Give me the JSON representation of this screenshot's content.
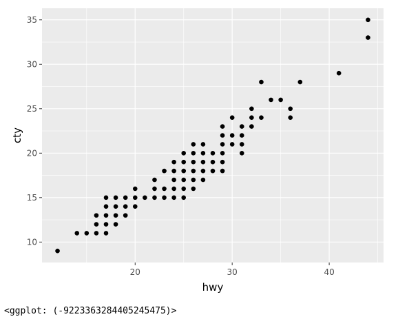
{
  "chart_data": {
    "type": "scatter",
    "xlabel": "hwy",
    "ylabel": "cty",
    "xlim": [
      10.4,
      45.6
    ],
    "ylim": [
      7.7,
      36.3
    ],
    "x_ticks": [
      20,
      30,
      40
    ],
    "y_ticks": [
      10,
      15,
      20,
      25,
      30,
      35
    ],
    "grid": true,
    "colors": {
      "panel": "#ebebeb",
      "grid": "#ffffff",
      "point": "#000000",
      "tick": "#4d4d4d"
    },
    "points": [
      [
        12,
        9
      ],
      [
        14,
        11
      ],
      [
        15,
        11
      ],
      [
        16,
        11
      ],
      [
        17,
        11
      ],
      [
        16,
        12
      ],
      [
        17,
        12
      ],
      [
        18,
        12
      ],
      [
        16,
        13
      ],
      [
        17,
        13
      ],
      [
        18,
        13
      ],
      [
        19,
        13
      ],
      [
        17,
        14
      ],
      [
        18,
        14
      ],
      [
        19,
        14
      ],
      [
        20,
        14
      ],
      [
        17,
        15
      ],
      [
        18,
        15
      ],
      [
        19,
        15
      ],
      [
        20,
        15
      ],
      [
        21,
        15
      ],
      [
        22,
        15
      ],
      [
        23,
        15
      ],
      [
        24,
        15
      ],
      [
        25,
        15
      ],
      [
        20,
        16
      ],
      [
        22,
        16
      ],
      [
        23,
        16
      ],
      [
        24,
        16
      ],
      [
        25,
        16
      ],
      [
        26,
        16
      ],
      [
        22,
        17
      ],
      [
        24,
        17
      ],
      [
        25,
        17
      ],
      [
        26,
        17
      ],
      [
        27,
        17
      ],
      [
        23,
        18
      ],
      [
        24,
        18
      ],
      [
        25,
        18
      ],
      [
        26,
        18
      ],
      [
        27,
        18
      ],
      [
        28,
        18
      ],
      [
        29,
        18
      ],
      [
        24,
        19
      ],
      [
        25,
        19
      ],
      [
        26,
        19
      ],
      [
        27,
        19
      ],
      [
        28,
        19
      ],
      [
        29,
        19
      ],
      [
        25,
        20
      ],
      [
        26,
        20
      ],
      [
        27,
        20
      ],
      [
        28,
        20
      ],
      [
        29,
        20
      ],
      [
        31,
        20
      ],
      [
        26,
        21
      ],
      [
        27,
        21
      ],
      [
        29,
        21
      ],
      [
        30,
        21
      ],
      [
        31,
        21
      ],
      [
        29,
        22
      ],
      [
        30,
        22
      ],
      [
        31,
        22
      ],
      [
        29,
        23
      ],
      [
        31,
        23
      ],
      [
        32,
        23
      ],
      [
        30,
        24
      ],
      [
        32,
        24
      ],
      [
        33,
        24
      ],
      [
        36,
        24
      ],
      [
        32,
        25
      ],
      [
        36,
        25
      ],
      [
        34,
        26
      ],
      [
        35,
        26
      ],
      [
        33,
        28
      ],
      [
        37,
        28
      ],
      [
        41,
        29
      ],
      [
        44,
        33
      ],
      [
        44,
        35
      ]
    ]
  },
  "output": {
    "repr": "<ggplot: (-9223363284405245475)>"
  }
}
